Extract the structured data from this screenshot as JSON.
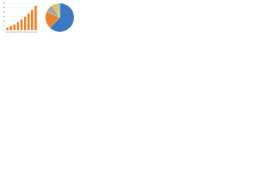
{
  "chart_data": [
    {
      "type": "bar",
      "categories": [
        "2012",
        "2013",
        "2014",
        "2015",
        "2016",
        "2017",
        "2018",
        "2019",
        "2020"
      ],
      "values": [
        6,
        9,
        13,
        18,
        24,
        30,
        37,
        45,
        54
      ],
      "color": "#e8832a",
      "ylim": [
        0,
        60
      ],
      "yticks": [
        0,
        10,
        20,
        30,
        40,
        50,
        60
      ],
      "grid": true
    },
    {
      "type": "pie",
      "categories": [
        null,
        null,
        null,
        null,
        null
      ],
      "values": [
        62,
        20,
        9,
        6,
        3
      ],
      "colors": [
        "#3a78c2",
        "#e8832a",
        "#a5a5a5",
        "#f2c12e",
        "#8fc3e8"
      ]
    }
  ]
}
